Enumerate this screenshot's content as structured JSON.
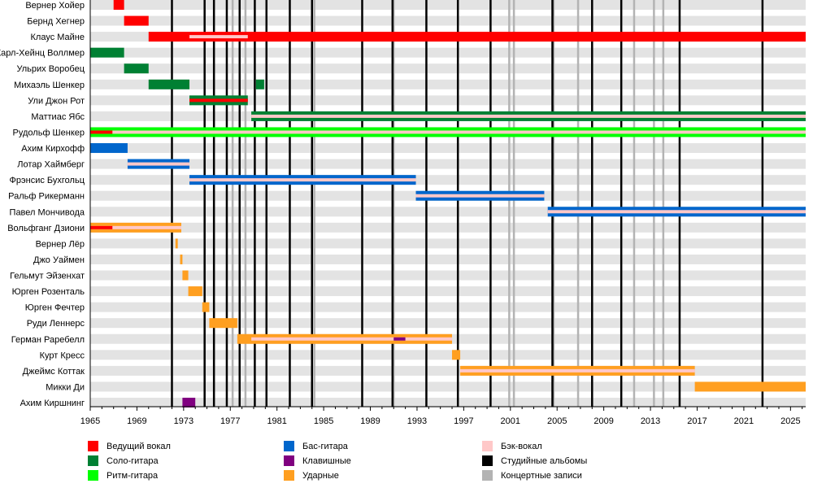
{
  "chart_data": {
    "type": "timeline",
    "xlim": [
      1965,
      2026.3
    ],
    "x_ticks": [
      "1965",
      "1969",
      "1973",
      "1977",
      "1981",
      "1985",
      "1989",
      "1993",
      "1997",
      "2001",
      "2005",
      "2009",
      "2013",
      "2017",
      "2021",
      "2025"
    ],
    "roles": {
      "vocals": {
        "label": "Ведущий вокал",
        "color": "#ff0000"
      },
      "lead": {
        "label": "Соло-гитара",
        "color": "#008033"
      },
      "rhythm": {
        "label": "Ритм-гитара",
        "color": "#00ff00"
      },
      "bass": {
        "label": "Бас-гитара",
        "color": "#0066cc"
      },
      "keys": {
        "label": "Клавишные",
        "color": "#800080"
      },
      "drums": {
        "label": "Ударные",
        "color": "#ff9f20"
      },
      "backing": {
        "label": "Бэк-вокал",
        "color": "#ffc8c8"
      },
      "studio": {
        "label": "Студийные альбомы",
        "color": "#000000"
      },
      "live": {
        "label": "Концертные записи",
        "color": "#b3b3b3"
      }
    },
    "members": [
      {
        "name": "Вернер Хойер",
        "bars": [
          {
            "role": "vocals",
            "start": 1967.0,
            "end": 1967.9
          }
        ]
      },
      {
        "name": "Бернд Хегнер",
        "bars": [
          {
            "role": "vocals",
            "start": 1967.9,
            "end": 1970.0
          }
        ]
      },
      {
        "name": "Клаус Майне",
        "bars": [
          {
            "role": "vocals",
            "start": 1970.0,
            "end": 2026.3
          },
          {
            "role": "backing",
            "start": 1973.5,
            "end": 1978.5,
            "inner": true
          }
        ]
      },
      {
        "name": "Карл-Хейнц Воллмер",
        "bars": [
          {
            "role": "lead",
            "start": 1965.0,
            "end": 1967.9
          }
        ]
      },
      {
        "name": "Ульрих Воробец",
        "bars": [
          {
            "role": "lead",
            "start": 1967.9,
            "end": 1970.0
          }
        ]
      },
      {
        "name": "Михаэль Шенкер",
        "bars": [
          {
            "role": "lead",
            "start": 1970.0,
            "end": 1973.5
          },
          {
            "role": "lead",
            "start": 1979.2,
            "end": 1979.9
          }
        ]
      },
      {
        "name": "Ули Джон Рот",
        "bars": [
          {
            "role": "lead",
            "start": 1973.5,
            "end": 1978.5
          },
          {
            "role": "vocals",
            "start": 1973.5,
            "end": 1978.5,
            "inner": true
          }
        ]
      },
      {
        "name": "Маттиас Ябс",
        "bars": [
          {
            "role": "lead",
            "start": 1978.8,
            "end": 2026.3
          },
          {
            "role": "backing",
            "start": 1978.8,
            "end": 2026.3,
            "inner": true
          }
        ]
      },
      {
        "name": "Рудольф Шенкер",
        "bars": [
          {
            "role": "rhythm",
            "start": 1965.0,
            "end": 2026.3
          },
          {
            "role": "backing",
            "start": 1965.0,
            "end": 2026.3,
            "inner": true
          },
          {
            "role": "vocals",
            "start": 1965.0,
            "end": 1966.9,
            "inner": true
          }
        ]
      },
      {
        "name": "Ахим Кирхофф",
        "bars": [
          {
            "role": "bass",
            "start": 1965.0,
            "end": 1968.2
          }
        ]
      },
      {
        "name": "Лотар Хаймберг",
        "bars": [
          {
            "role": "bass",
            "start": 1968.2,
            "end": 1973.5
          },
          {
            "role": "backing",
            "start": 1968.2,
            "end": 1973.5,
            "inner": true
          }
        ]
      },
      {
        "name": "Фрэнсис Бухгольц",
        "bars": [
          {
            "role": "bass",
            "start": 1973.5,
            "end": 1992.9
          },
          {
            "role": "backing",
            "start": 1973.5,
            "end": 1992.9,
            "inner": true
          }
        ]
      },
      {
        "name": "Ральф Рикерманн",
        "bars": [
          {
            "role": "bass",
            "start": 1992.9,
            "end": 2003.9
          },
          {
            "role": "backing",
            "start": 1992.9,
            "end": 2003.9,
            "inner": true
          }
        ]
      },
      {
        "name": "Павел Мончивода",
        "bars": [
          {
            "role": "bass",
            "start": 2004.2,
            "end": 2026.3
          },
          {
            "role": "backing",
            "start": 2004.2,
            "end": 2026.3,
            "inner": true
          }
        ]
      },
      {
        "name": "Вольфганг Дзиони",
        "bars": [
          {
            "role": "drums",
            "start": 1965.0,
            "end": 1972.8
          },
          {
            "role": "backing",
            "start": 1965.0,
            "end": 1972.8,
            "inner": true
          },
          {
            "role": "vocals",
            "start": 1965.0,
            "end": 1966.9,
            "inner": true
          }
        ]
      },
      {
        "name": "Вернер Лёр",
        "bars": [
          {
            "role": "drums",
            "start": 1972.3,
            "end": 1972.5
          }
        ]
      },
      {
        "name": "Джо Уаймен",
        "bars": [
          {
            "role": "drums",
            "start": 1972.7,
            "end": 1972.9
          }
        ]
      },
      {
        "name": "Гельмут Эйзенхат",
        "bars": [
          {
            "role": "drums",
            "start": 1972.9,
            "end": 1973.4
          }
        ]
      },
      {
        "name": "Юрген Розенталь",
        "bars": [
          {
            "role": "drums",
            "start": 1973.4,
            "end": 1974.6
          }
        ]
      },
      {
        "name": "Юрген Фечтер",
        "bars": [
          {
            "role": "drums",
            "start": 1974.6,
            "end": 1975.2
          }
        ]
      },
      {
        "name": "Руди Леннерс",
        "bars": [
          {
            "role": "drums",
            "start": 1975.2,
            "end": 1977.6
          }
        ]
      },
      {
        "name": "Герман Раребелл",
        "bars": [
          {
            "role": "drums",
            "start": 1977.6,
            "end": 1996.0
          },
          {
            "role": "backing",
            "start": 1978.8,
            "end": 1996.0,
            "inner": true
          },
          {
            "role": "keys",
            "start": 1991.0,
            "end": 1992.0,
            "inner": true
          }
        ]
      },
      {
        "name": "Курт Кресс",
        "bars": [
          {
            "role": "drums",
            "start": 1996.0,
            "end": 1996.7
          }
        ]
      },
      {
        "name": "Джеймс Коттак",
        "bars": [
          {
            "role": "drums",
            "start": 1996.7,
            "end": 2016.8
          },
          {
            "role": "backing",
            "start": 1996.7,
            "end": 2016.8,
            "inner": true
          }
        ]
      },
      {
        "name": "Микки Ди",
        "bars": [
          {
            "role": "drums",
            "start": 2016.8,
            "end": 2026.3
          }
        ]
      },
      {
        "name": "Ахим Киршнинг",
        "bars": [
          {
            "role": "keys",
            "start": 1972.9,
            "end": 1974.0
          }
        ]
      }
    ],
    "studio_albums": [
      1972.0,
      1974.8,
      1975.6,
      1976.7,
      1977.8,
      1979.1,
      1980.1,
      1982.1,
      1984.0,
      1988.3,
      1990.9,
      1993.8,
      1996.5,
      1999.3,
      2004.6,
      2008.0,
      2010.5,
      2015.5,
      2022.6
    ],
    "live_albums": [
      1977.2,
      1978.3,
      1984.2,
      1991.0,
      2000.9,
      2001.3,
      2004.7,
      2006.8,
      2011.6,
      2013.3,
      2014.1
    ],
    "legend_order": [
      [
        "vocals",
        "lead",
        "rhythm"
      ],
      [
        "bass",
        "keys",
        "drums"
      ],
      [
        "backing",
        "studio",
        "live"
      ]
    ]
  }
}
